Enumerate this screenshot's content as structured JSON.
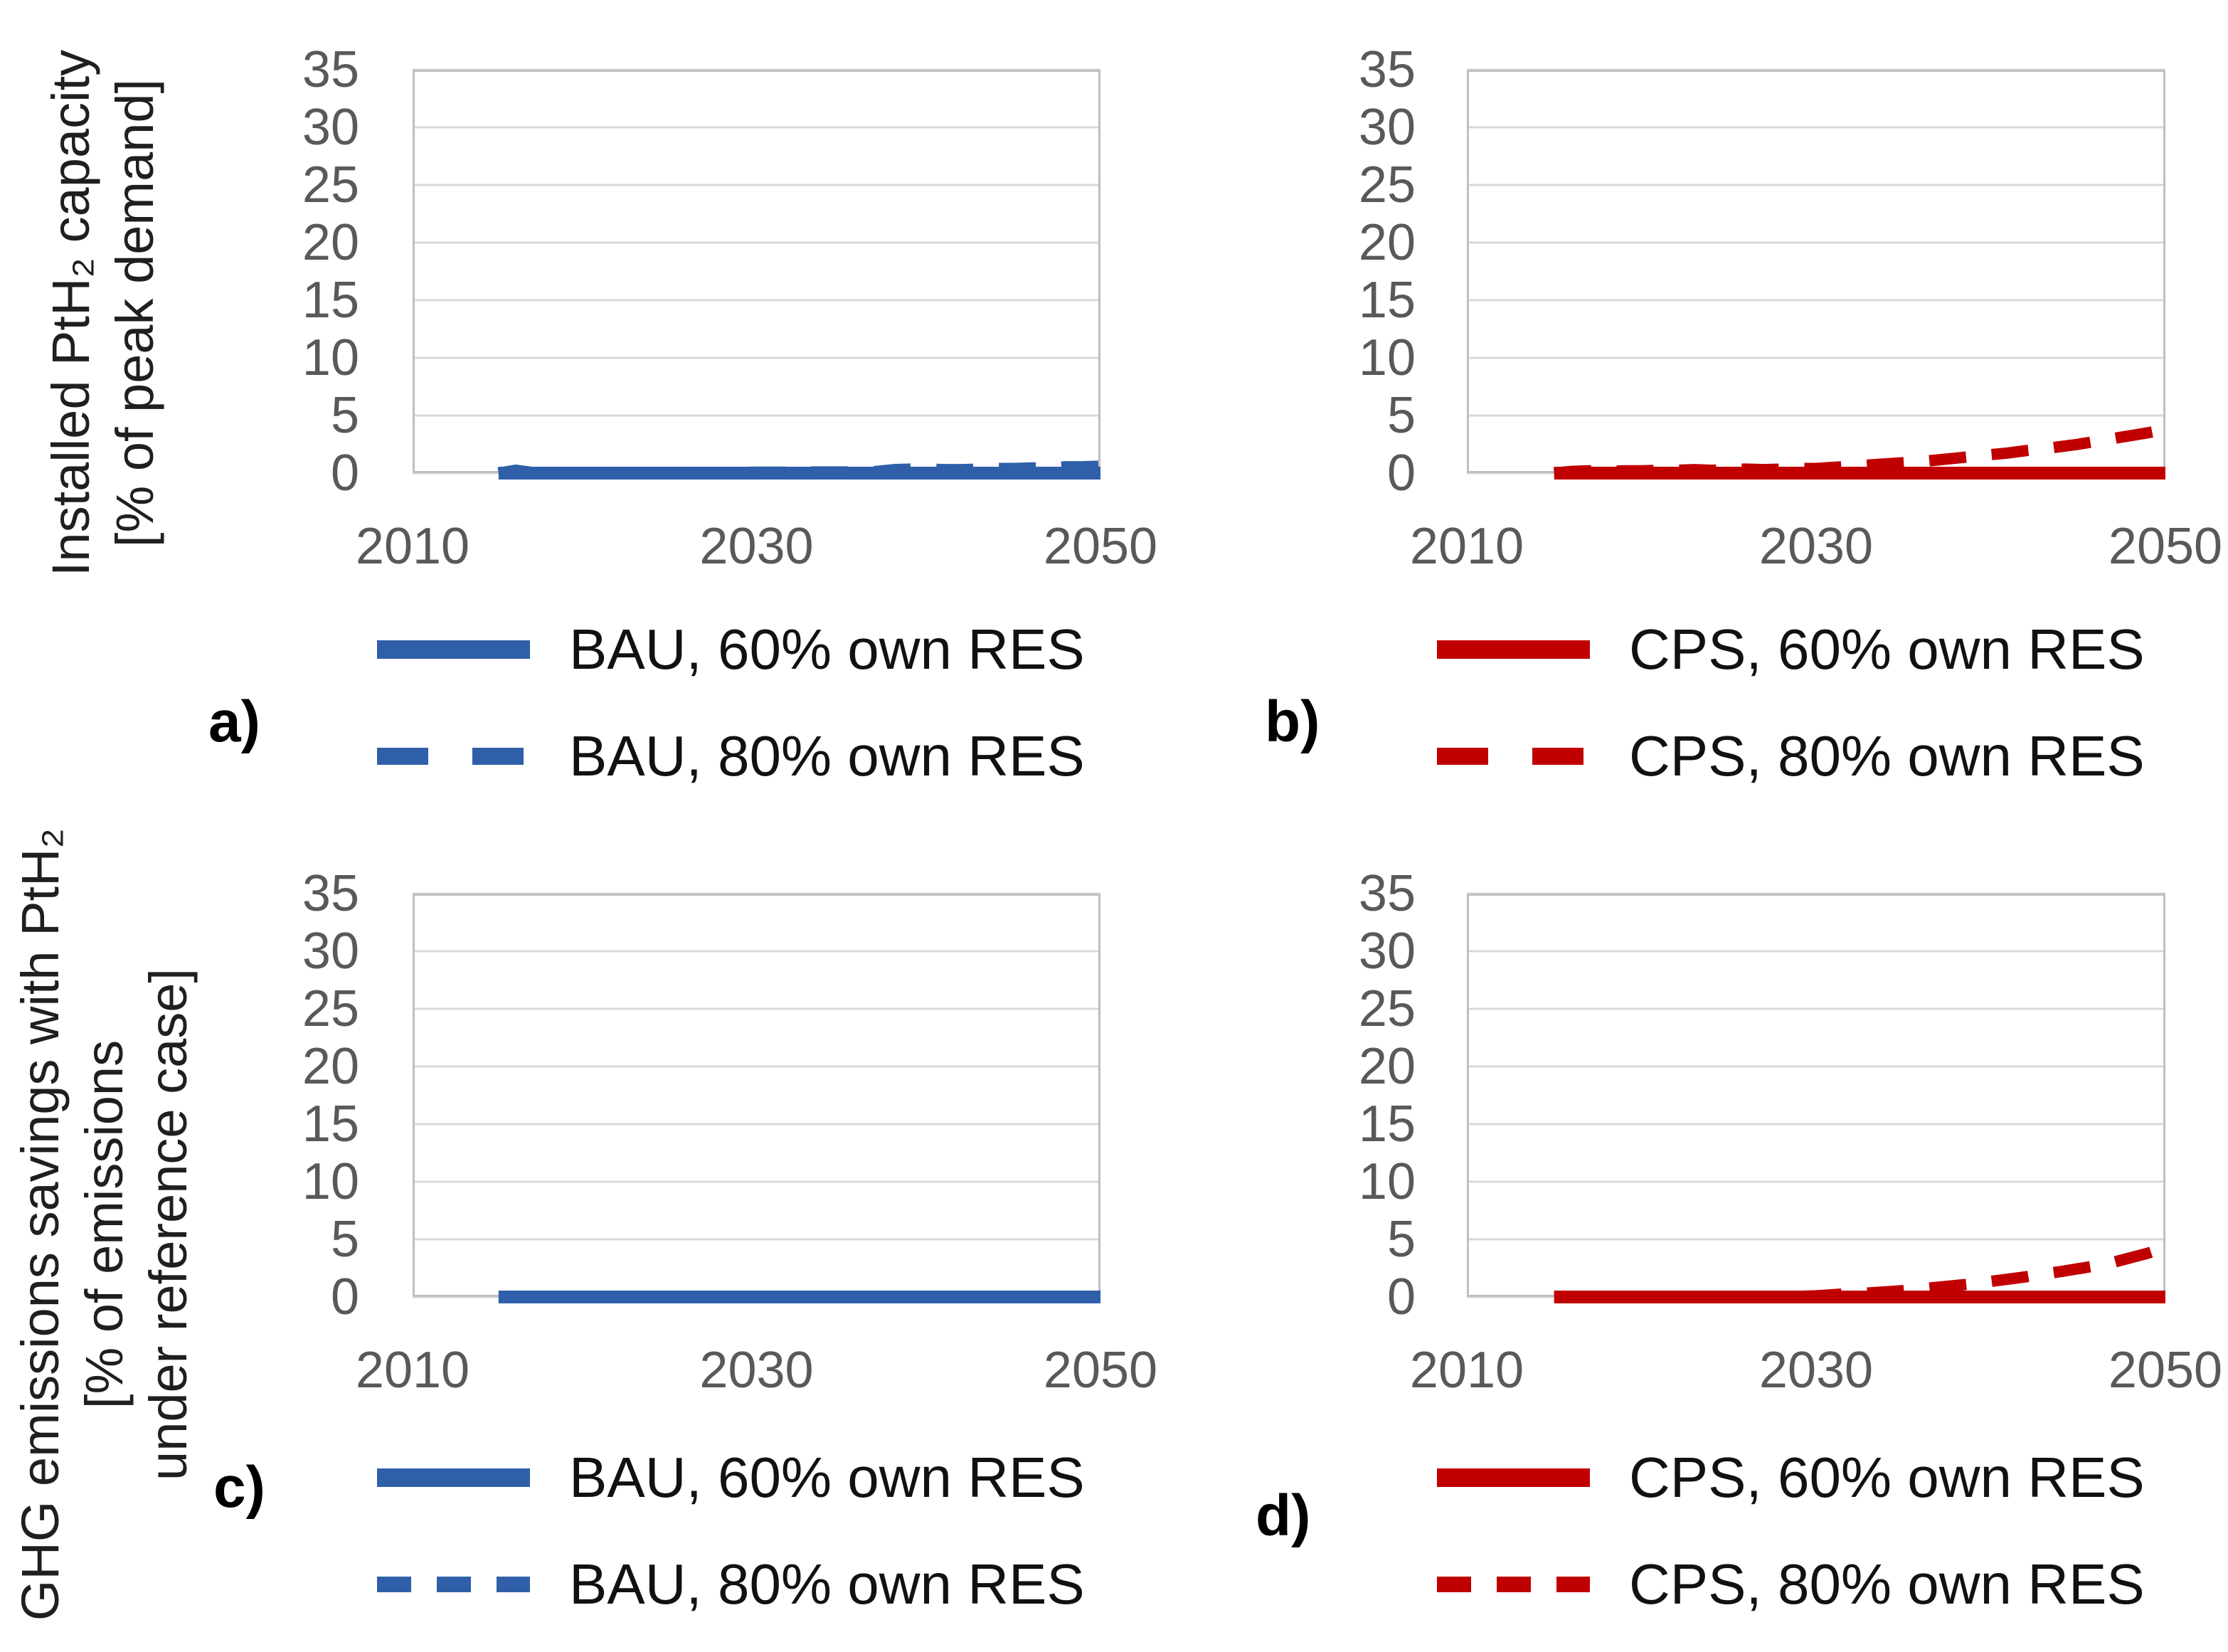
{
  "colors": {
    "bau_blue": "#2f5fa8",
    "cps_red": "#c00000",
    "grid": "#d9d9d9",
    "border": "#bfbfbf",
    "tick_text": "#595959",
    "label_text": "#1f1f1f"
  },
  "y_axis_titles": {
    "top": [
      "Installed PtH₂ capacity",
      "[% of peak demand]"
    ],
    "bottom": [
      "GHG emissions savings with PtH₂",
      "[% of emissions",
      "under reference case]"
    ]
  },
  "chart_data": [
    {
      "id": "a",
      "panel_label": "a)",
      "type": "line",
      "title": "",
      "xlabel": "",
      "ylabel": "Installed PtH₂ capacity [% of peak demand]",
      "xlim": [
        2010,
        2050
      ],
      "ylim": [
        0,
        35
      ],
      "x_ticks": [
        2010,
        2030,
        2050
      ],
      "y_ticks": [
        0,
        5,
        10,
        15,
        20,
        25,
        30,
        35
      ],
      "grid": true,
      "legend_position": "below",
      "series": [
        {
          "name": "BAU, 60% own RES",
          "color": "#2f5fa8",
          "style": "solid",
          "x": [
            2015,
            2050
          ],
          "y": [
            0,
            0
          ]
        },
        {
          "name": "BAU, 80% own RES",
          "color": "#2f5fa8",
          "style": "dashed",
          "legend_dash": "72 62",
          "x": [
            2015,
            2016,
            2017,
            2018,
            2019,
            2020,
            2021,
            2022,
            2023,
            2024,
            2025,
            2026,
            2027,
            2028,
            2029,
            2030,
            2031,
            2032,
            2033,
            2034,
            2035,
            2036,
            2037,
            2038,
            2039,
            2040,
            2041,
            2042,
            2043,
            2044,
            2045,
            2046,
            2047,
            2048,
            2049,
            2050
          ],
          "y": [
            0,
            0.25,
            0.05,
            0.05,
            0.05,
            0.05,
            0.05,
            0.05,
            0.05,
            0.05,
            0.05,
            0.05,
            0.05,
            0.05,
            0.05,
            0.08,
            0.08,
            0.08,
            0.1,
            0.1,
            0.1,
            0.1,
            0.15,
            0.3,
            0.35,
            0.35,
            0.3,
            0.3,
            0.35,
            0.4,
            0.4,
            0.45,
            0.45,
            0.55,
            0.55,
            0.6
          ]
        }
      ]
    },
    {
      "id": "b",
      "panel_label": "b)",
      "type": "line",
      "title": "",
      "xlabel": "",
      "ylabel": "Installed PtH₂ capacity [% of peak demand]",
      "xlim": [
        2010,
        2050
      ],
      "ylim": [
        0,
        35
      ],
      "x_ticks": [
        2010,
        2030,
        2050
      ],
      "y_ticks": [
        0,
        5,
        10,
        15,
        20,
        25,
        30,
        35
      ],
      "grid": true,
      "legend_position": "below",
      "series": [
        {
          "name": "CPS, 60% own RES",
          "color": "#c00000",
          "style": "solid",
          "x": [
            2015,
            2050
          ],
          "y": [
            0,
            0
          ]
        },
        {
          "name": "CPS, 80% own RES",
          "color": "#c00000",
          "style": "dashed",
          "legend_dash": "72 62",
          "x": [
            2015,
            2016,
            2017,
            2018,
            2019,
            2020,
            2021,
            2022,
            2023,
            2024,
            2025,
            2026,
            2027,
            2028,
            2029,
            2030,
            2031,
            2032,
            2033,
            2034,
            2035,
            2036,
            2037,
            2038,
            2039,
            2040,
            2041,
            2042,
            2043,
            2044,
            2045,
            2046,
            2047,
            2048,
            2049,
            2050
          ],
          "y": [
            0,
            0.15,
            0.2,
            0.15,
            0.2,
            0.2,
            0.25,
            0.25,
            0.3,
            0.25,
            0.3,
            0.35,
            0.3,
            0.35,
            0.4,
            0.4,
            0.5,
            0.6,
            0.7,
            0.8,
            0.9,
            1.0,
            1.15,
            1.3,
            1.45,
            1.6,
            1.75,
            1.95,
            2.1,
            2.3,
            2.5,
            2.75,
            3.0,
            3.25,
            3.5,
            3.8
          ]
        }
      ]
    },
    {
      "id": "c",
      "panel_label": "c)",
      "type": "line",
      "title": "",
      "xlabel": "",
      "ylabel": "GHG emissions savings with PtH₂ [% of emissions under reference case]",
      "xlim": [
        2010,
        2050
      ],
      "ylim": [
        0,
        35
      ],
      "x_ticks": [
        2010,
        2030,
        2050
      ],
      "y_ticks": [
        0,
        5,
        10,
        15,
        20,
        25,
        30,
        35
      ],
      "grid": true,
      "legend_position": "below",
      "series": [
        {
          "name": "BAU, 60% own RES",
          "color": "#2f5fa8",
          "style": "solid",
          "x": [
            2015,
            2050
          ],
          "y": [
            0,
            0
          ]
        },
        {
          "name": "BAU, 80% own RES",
          "color": "#2f5fa8",
          "style": "dashed",
          "legend_dash": "48 36",
          "x": [
            2015,
            2050
          ],
          "y": [
            0,
            0
          ]
        }
      ]
    },
    {
      "id": "d",
      "panel_label": "d)",
      "type": "line",
      "title": "",
      "xlabel": "",
      "ylabel": "GHG emissions savings with PtH₂ [% of emissions under reference case]",
      "xlim": [
        2010,
        2050
      ],
      "ylim": [
        0,
        35
      ],
      "x_ticks": [
        2010,
        2030,
        2050
      ],
      "y_ticks": [
        0,
        5,
        10,
        15,
        20,
        25,
        30,
        35
      ],
      "grid": true,
      "legend_position": "below",
      "series": [
        {
          "name": "CPS, 60% own RES",
          "color": "#c00000",
          "style": "solid",
          "x": [
            2015,
            2050
          ],
          "y": [
            0,
            0
          ]
        },
        {
          "name": "CPS, 80% own RES",
          "color": "#c00000",
          "style": "dashed",
          "legend_dash": "48 36",
          "x": [
            2015,
            2016,
            2017,
            2018,
            2019,
            2020,
            2021,
            2022,
            2023,
            2024,
            2025,
            2026,
            2027,
            2028,
            2029,
            2030,
            2031,
            2032,
            2033,
            2034,
            2035,
            2036,
            2037,
            2038,
            2039,
            2040,
            2041,
            2042,
            2043,
            2044,
            2045,
            2046,
            2047,
            2048,
            2049,
            2050
          ],
          "y": [
            0,
            0,
            0,
            0,
            0,
            0,
            0,
            0,
            0,
            0,
            0,
            0,
            0,
            0,
            0.05,
            0.1,
            0.2,
            0.3,
            0.35,
            0.45,
            0.55,
            0.7,
            0.85,
            1.0,
            1.15,
            1.35,
            1.55,
            1.75,
            2.0,
            2.2,
            2.45,
            2.7,
            3.0,
            3.4,
            3.8,
            4.3
          ]
        }
      ]
    }
  ]
}
